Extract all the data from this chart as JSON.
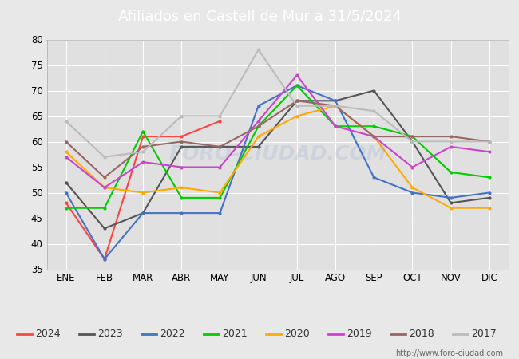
{
  "title": "Afiliados en Castell de Mur a 31/5/2024",
  "title_color": "#ffffff",
  "title_bg_color": "#4472c4",
  "xlabel": "",
  "ylabel": "",
  "ylim": [
    35,
    80
  ],
  "yticks": [
    35,
    40,
    45,
    50,
    55,
    60,
    65,
    70,
    75,
    80
  ],
  "months": [
    "ENE",
    "FEB",
    "MAR",
    "ABR",
    "MAY",
    "JUN",
    "JUL",
    "AGO",
    "SEP",
    "OCT",
    "NOV",
    "DIC"
  ],
  "watermark": "FORO-CIUDAD.COM",
  "url": "http://www.foro-ciudad.com",
  "series": {
    "2024": {
      "color": "#ff4444",
      "data": [
        48,
        37,
        61,
        61,
        64,
        null,
        null,
        null,
        null,
        null,
        null,
        null
      ]
    },
    "2023": {
      "color": "#555555",
      "data": [
        52,
        43,
        46,
        59,
        59,
        59,
        68,
        68,
        70,
        60,
        48,
        49
      ]
    },
    "2022": {
      "color": "#4472c4",
      "data": [
        50,
        37,
        46,
        46,
        46,
        67,
        71,
        68,
        53,
        50,
        49,
        50
      ]
    },
    "2021": {
      "color": "#00cc00",
      "data": [
        47,
        47,
        62,
        49,
        49,
        63,
        71,
        63,
        63,
        61,
        54,
        53
      ]
    },
    "2020": {
      "color": "#ffaa00",
      "data": [
        58,
        51,
        50,
        51,
        50,
        61,
        65,
        67,
        61,
        51,
        47,
        47
      ]
    },
    "2019": {
      "color": "#cc44cc",
      "data": [
        57,
        51,
        56,
        55,
        55,
        64,
        73,
        63,
        61,
        55,
        59,
        58
      ]
    },
    "2018": {
      "color": "#996666",
      "data": [
        60,
        53,
        59,
        60,
        59,
        63,
        68,
        67,
        61,
        61,
        61,
        60
      ]
    },
    "2017": {
      "color": "#bbbbbb",
      "data": [
        64,
        57,
        58,
        65,
        65,
        78,
        67,
        67,
        66,
        60,
        60,
        60
      ]
    }
  },
  "legend_order": [
    "2024",
    "2023",
    "2022",
    "2021",
    "2020",
    "2019",
    "2018",
    "2017"
  ],
  "background_color": "#e8e8e8",
  "plot_bg_color": "#e0e0e0",
  "grid_color": "#ffffff",
  "figsize": [
    6.5,
    4.5
  ],
  "dpi": 100
}
